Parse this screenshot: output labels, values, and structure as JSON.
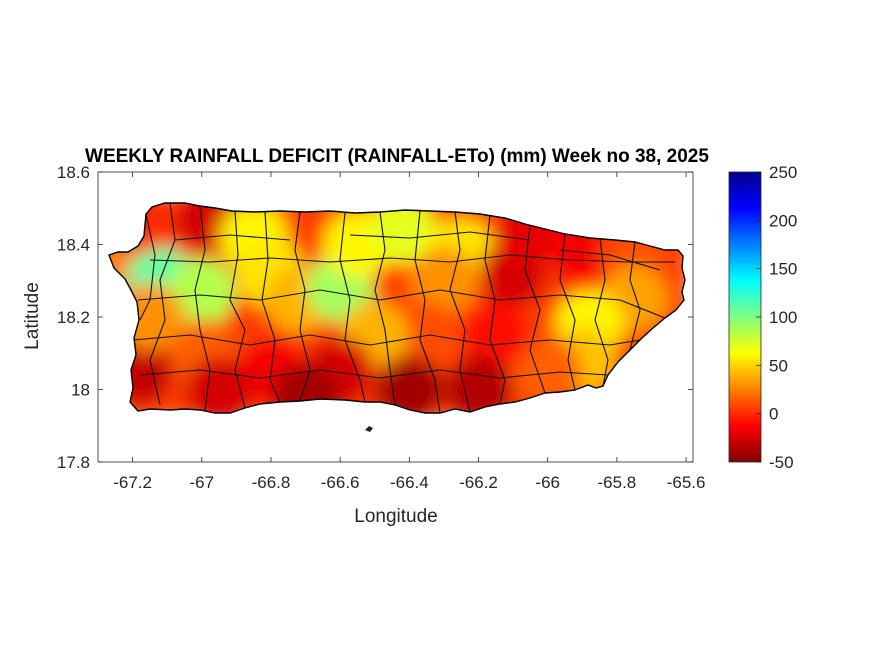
{
  "chart_data": {
    "type": "heatmap",
    "title": "WEEKLY RAINFALL DEFICIT (RAINFALL-ETo) (mm) Week no 38, 2025",
    "xlabel": "Longitude",
    "ylabel": "Latitude",
    "xlim": [
      -67.3,
      -65.58
    ],
    "ylim": [
      17.8,
      18.6
    ],
    "x_ticks": [
      -67.2,
      -67,
      -66.8,
      -66.6,
      -66.4,
      -66.2,
      -66,
      -65.8,
      -65.6
    ],
    "x_tick_labels": [
      "-67.2",
      "-67",
      "-66.8",
      "-66.6",
      "-66.4",
      "-66.2",
      "-66",
      "-65.8",
      "-65.6"
    ],
    "y_ticks": [
      17.8,
      18,
      18.2,
      18.4,
      18.6
    ],
    "y_tick_labels": [
      "17.8",
      "18",
      "18.2",
      "18.4",
      "18.6"
    ],
    "colorbar": {
      "min": -50,
      "max": 250,
      "ticks": [
        -50,
        0,
        50,
        100,
        150,
        200,
        250
      ],
      "tick_labels": [
        "-50",
        "0",
        "50",
        "100",
        "150",
        "200",
        "250"
      ],
      "colormap": [
        "#800000",
        "#ff0000",
        "#ff8000",
        "#ffff00",
        "#80ff80",
        "#00ffff",
        "#0080ff",
        "#0000ff",
        "#00008f"
      ]
    },
    "field": [
      {
        "lon": -67.25,
        "lat": 18.36,
        "value": 25
      },
      {
        "lon": -67.12,
        "lat": 18.3,
        "value": 110
      },
      {
        "lon": -67.0,
        "lat": 18.27,
        "value": 85
      },
      {
        "lon": -66.98,
        "lat": 18.47,
        "value": -25
      },
      {
        "lon": -67.18,
        "lat": 18.47,
        "value": 0
      },
      {
        "lon": -66.85,
        "lat": 18.42,
        "value": 60
      },
      {
        "lon": -66.8,
        "lat": 18.32,
        "value": 55
      },
      {
        "lon": -66.72,
        "lat": 18.25,
        "value": 40
      },
      {
        "lon": -66.6,
        "lat": 18.28,
        "value": 90
      },
      {
        "lon": -66.55,
        "lat": 18.4,
        "value": 60
      },
      {
        "lon": -66.42,
        "lat": 18.44,
        "value": 70
      },
      {
        "lon": -66.25,
        "lat": 18.38,
        "value": 55
      },
      {
        "lon": -66.3,
        "lat": 18.3,
        "value": 30
      },
      {
        "lon": -66.1,
        "lat": 18.32,
        "value": -25
      },
      {
        "lon": -66.05,
        "lat": 18.44,
        "value": -20
      },
      {
        "lon": -65.9,
        "lat": 18.38,
        "value": -15
      },
      {
        "lon": -65.75,
        "lat": 18.37,
        "value": 10
      },
      {
        "lon": -65.75,
        "lat": 18.25,
        "value": 35
      },
      {
        "lon": -65.88,
        "lat": 18.18,
        "value": 60
      },
      {
        "lon": -65.9,
        "lat": 18.08,
        "value": 45
      },
      {
        "lon": -66.0,
        "lat": 18.05,
        "value": 15
      },
      {
        "lon": -66.15,
        "lat": 18.15,
        "value": -10
      },
      {
        "lon": -66.35,
        "lat": 18.15,
        "value": 10
      },
      {
        "lon": -66.5,
        "lat": 18.15,
        "value": 40
      },
      {
        "lon": -66.6,
        "lat": 18.05,
        "value": -25
      },
      {
        "lon": -66.4,
        "lat": 18.0,
        "value": -40
      },
      {
        "lon": -66.2,
        "lat": 18.0,
        "value": -35
      },
      {
        "lon": -66.8,
        "lat": 18.05,
        "value": -15
      },
      {
        "lon": -67.0,
        "lat": 18.1,
        "value": 15
      },
      {
        "lon": -67.18,
        "lat": 18.05,
        "value": -30
      },
      {
        "lon": -67.15,
        "lat": 18.2,
        "value": 30
      },
      {
        "lon": -66.95,
        "lat": 18.0,
        "value": -25
      },
      {
        "lon": -66.7,
        "lat": 17.98,
        "value": -40
      }
    ]
  }
}
